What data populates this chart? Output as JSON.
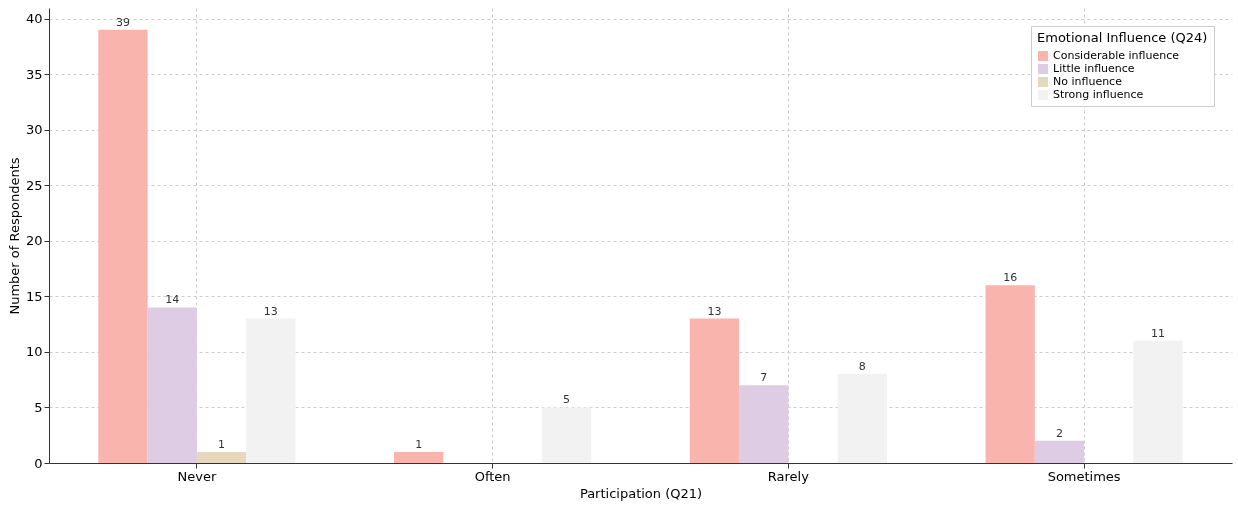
{
  "chart_data": {
    "type": "bar",
    "xlabel": "Participation (Q21)",
    "ylabel": "Number of Respondents",
    "legend_title": "Emotional Influence (Q24)",
    "categories": [
      "Never",
      "Often",
      "Rarely",
      "Sometimes"
    ],
    "series": [
      {
        "name": "Considerable influence",
        "color": "#fab4ae",
        "values": [
          39,
          1,
          13,
          16
        ]
      },
      {
        "name": "Little influence",
        "color": "#decbe4",
        "values": [
          14,
          null,
          7,
          2
        ]
      },
      {
        "name": "No influence",
        "color": "#e5d8bd",
        "values": [
          1,
          null,
          null,
          null
        ]
      },
      {
        "name": "Strong influence",
        "color": "#f2f2f2",
        "values": [
          13,
          5,
          8,
          11
        ]
      }
    ],
    "ylim": [
      0,
      40.95
    ],
    "yticks": [
      0,
      5,
      10,
      15,
      20,
      25,
      30,
      35,
      40
    ],
    "grid": true,
    "legend": "top right",
    "data_labels": true
  }
}
